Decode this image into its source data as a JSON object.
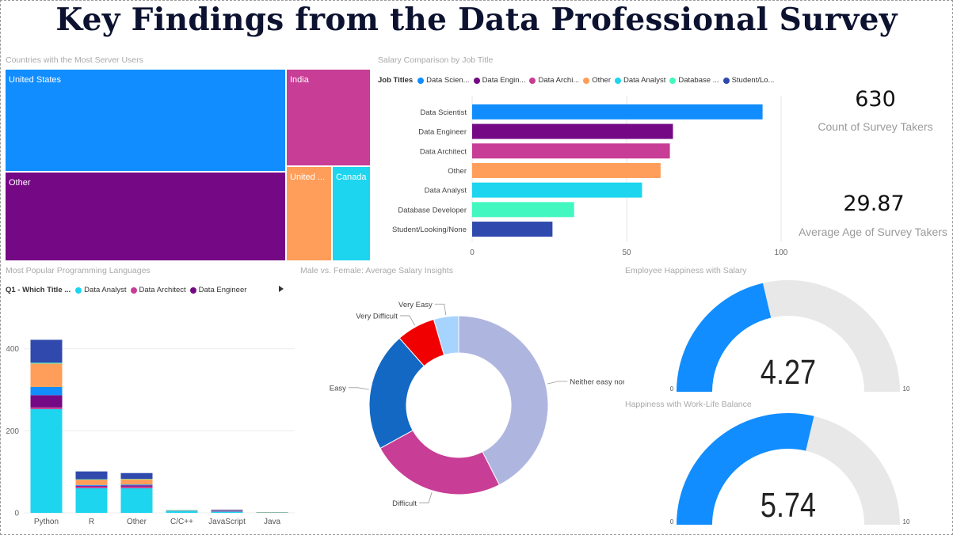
{
  "title": "Key Findings from the Data Professional Survey",
  "colors": {
    "blue": "#118DFF",
    "purple": "#750985",
    "magenta": "#C83D95",
    "orange": "#FF9E5A",
    "cyan": "#1DD5EE",
    "teal": "#42F7C0",
    "navy": "#3049AD",
    "gauge_track": "#E8E8E8"
  },
  "treemap": {
    "title": "Countries with the Most Server Users",
    "cells": [
      {
        "label": "United States",
        "color": "#118DFF"
      },
      {
        "label": "Other",
        "color": "#750985"
      },
      {
        "label": "India",
        "color": "#C83D95"
      },
      {
        "label": "United ...",
        "color": "#FF9E5A"
      },
      {
        "label": "Canada",
        "color": "#1DD5EE"
      }
    ]
  },
  "salary_chart_title": "Salary Comparison by Job Title",
  "salary_legend": {
    "title": "Job Titles",
    "items": [
      {
        "label": "Data Scien...",
        "color": "#118DFF"
      },
      {
        "label": "Data Engin...",
        "color": "#750985"
      },
      {
        "label": "Data Archi...",
        "color": "#C83D95"
      },
      {
        "label": "Other",
        "color": "#FF9E5A"
      },
      {
        "label": "Data Analyst",
        "color": "#1DD5EE"
      },
      {
        "label": "Database ...",
        "color": "#42F7C0"
      },
      {
        "label": "Student/Lo...",
        "color": "#3049AD"
      }
    ]
  },
  "kpis": {
    "count": {
      "value": "630",
      "label": "Count of Survey Takers"
    },
    "age": {
      "value": "29.87",
      "label": "Average Age of Survey Takers"
    }
  },
  "languages_chart_title": "Most Popular Programming Languages",
  "languages_legend": {
    "title": "Q1 - Which Title ...",
    "items": [
      {
        "label": "Data Analyst",
        "color": "#1DD5EE"
      },
      {
        "label": "Data Architect",
        "color": "#C83D95"
      },
      {
        "label": "Data Engineer",
        "color": "#750985"
      }
    ]
  },
  "donut_chart_title": "Male vs. Female: Average Salary Insights",
  "gauges": [
    {
      "title": "Employee Happiness with Salary",
      "value": 4.27,
      "display": "4.27",
      "min": 0,
      "max": 10,
      "min_label": "0",
      "max_label": "10"
    },
    {
      "title": "Happiness with Work-Life Balance",
      "value": 5.74,
      "display": "5.74",
      "min": 0,
      "max": 10,
      "min_label": "0",
      "max_label": "10"
    }
  ],
  "chart_data": [
    {
      "type": "bar",
      "orientation": "horizontal",
      "title": "Salary Comparison by Job Title",
      "categories": [
        "Data Scientist",
        "Data Engineer",
        "Data Architect",
        "Other",
        "Data Analyst",
        "Database Developer",
        "Student/Looking/None"
      ],
      "values": [
        94,
        65,
        64,
        61,
        55,
        33,
        26
      ],
      "colors": [
        "#118DFF",
        "#750985",
        "#C83D95",
        "#FF9E5A",
        "#1DD5EE",
        "#42F7C0",
        "#3049AD"
      ],
      "xlim": [
        0,
        100
      ],
      "xticks": [
        0,
        50,
        100
      ],
      "grid": true
    },
    {
      "type": "bar",
      "stacked": true,
      "title": "Most Popular Programming Languages",
      "categories": [
        "Python",
        "R",
        "Other",
        "C/C++",
        "JavaScript",
        "Java"
      ],
      "ylim": [
        0,
        440
      ],
      "yticks": [
        0,
        200,
        400
      ],
      "grid": true,
      "series": [
        {
          "name": "Data Analyst",
          "color": "#1DD5EE",
          "values": [
            253,
            60,
            60,
            4,
            3,
            1
          ]
        },
        {
          "name": "Data Architect",
          "color": "#C83D95",
          "values": [
            4,
            4,
            4,
            0,
            1,
            0
          ]
        },
        {
          "color": "#750985",
          "values": [
            30,
            2,
            3,
            0,
            1,
            0
          ]
        },
        {
          "color": "#118DFF",
          "values": [
            20,
            2,
            2,
            1,
            1,
            0
          ]
        },
        {
          "color": "#FF9E5A",
          "values": [
            57,
            13,
            13,
            1,
            1,
            1
          ]
        },
        {
          "color": "#42F7C0",
          "values": [
            2,
            1,
            1,
            1,
            0,
            0
          ]
        },
        {
          "color": "#3049AD",
          "values": [
            56,
            19,
            14,
            0,
            1,
            0
          ]
        }
      ]
    },
    {
      "type": "pie",
      "donut": true,
      "title": "Male vs. Female: Average Salary Insights",
      "slices": [
        {
          "label": "Neither easy nor diffic...",
          "value": 42.5,
          "color": "#AEB6E0"
        },
        {
          "label": "Difficult",
          "value": 24.5,
          "color": "#C83D95"
        },
        {
          "label": "Easy",
          "value": 21.5,
          "color": "#1368C4"
        },
        {
          "label": "Very Difficult",
          "value": 7.0,
          "color": "#F00000"
        },
        {
          "label": "Very Easy",
          "value": 4.5,
          "color": "#A6D4FF"
        }
      ]
    }
  ]
}
